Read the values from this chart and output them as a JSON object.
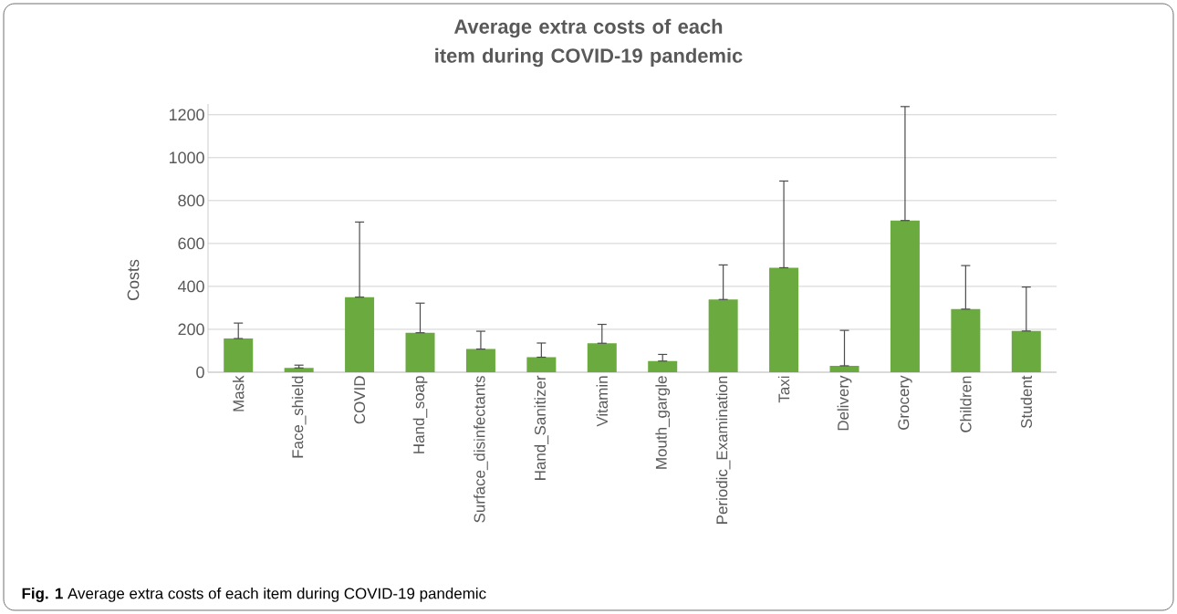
{
  "chart_data": {
    "type": "bar",
    "title": "Average extra costs of each item during COVID-19 pandemic",
    "ylabel": "Costs",
    "categories": [
      "Mask",
      "Face_shield",
      "COVID",
      "Hand_soap",
      "Surface_disinfectants",
      "Hand_Sanitizer",
      "Vitamin",
      "Mouth_gargle",
      "Periodic_Examination",
      "Taxi",
      "Delivery",
      "Grocery",
      "Children",
      "Student"
    ],
    "values": [
      157,
      20,
      350,
      184,
      108,
      70,
      135,
      52,
      339,
      487,
      30,
      707,
      294,
      192
    ],
    "errors": [
      [
        157,
        229
      ],
      [
        20,
        33
      ],
      [
        350,
        700
      ],
      [
        184,
        322
      ],
      [
        108,
        191
      ],
      [
        70,
        136
      ],
      [
        135,
        223
      ],
      [
        52,
        83
      ],
      [
        339,
        500
      ],
      [
        487,
        891
      ],
      [
        30,
        195
      ],
      [
        707,
        1238
      ],
      [
        294,
        497
      ],
      [
        192,
        397
      ]
    ],
    "color": "#6aaa3f",
    "ylim": [
      0,
      1250
    ],
    "yticks": [
      0,
      200,
      400,
      600,
      800,
      1000,
      1200
    ],
    "grid": "y",
    "annotations": [
      "**Fig. 1**  Average extra costs of each item during COVID-19 pandemic"
    ]
  }
}
